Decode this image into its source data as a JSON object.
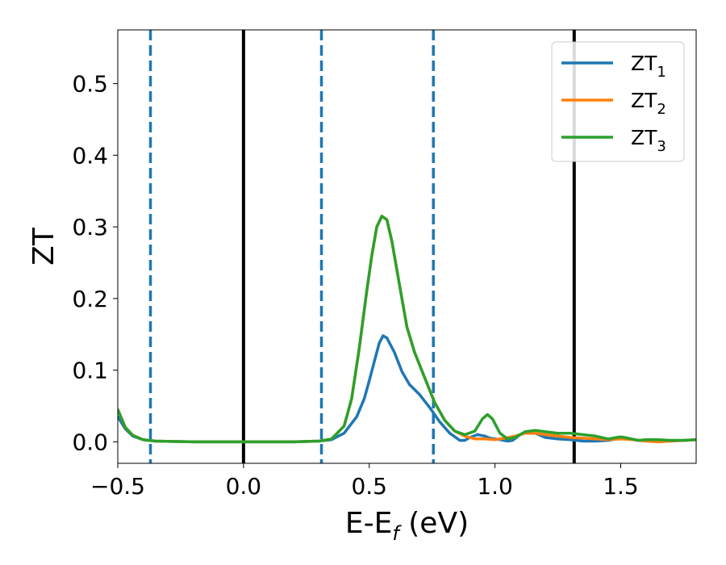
{
  "chart_data": {
    "type": "line",
    "xlabel": "E-E",
    "xlabel_sub": "f",
    "xlabel_unit": " (eV)",
    "ylabel": "ZT",
    "xlim": [
      -0.5,
      1.8
    ],
    "ylim": [
      -0.03,
      0.575
    ],
    "x_ticks": [
      -0.5,
      0.0,
      0.5,
      1.0,
      1.5
    ],
    "x_tick_labels": [
      "−0.5",
      "0.0",
      "0.5",
      "1.0",
      "1.5"
    ],
    "y_ticks": [
      0.0,
      0.1,
      0.2,
      0.3,
      0.4,
      0.5
    ],
    "y_tick_labels": [
      "0.0",
      "0.1",
      "0.2",
      "0.3",
      "0.4",
      "0.5"
    ],
    "grid": false,
    "legend_position": "top-right",
    "vertical_lines": [
      {
        "x": -0.37,
        "style": "dashed",
        "color": "#1f77b4"
      },
      {
        "x": 0.0,
        "style": "solid",
        "color": "#000000"
      },
      {
        "x": 0.31,
        "style": "dashed",
        "color": "#1f77b4"
      },
      {
        "x": 0.755,
        "style": "dashed",
        "color": "#1f77b4"
      },
      {
        "x": 1.315,
        "style": "solid",
        "color": "#000000"
      }
    ],
    "series": [
      {
        "name": "ZT",
        "name_sub": "1",
        "color": "#1f77b4",
        "points": [
          [
            -0.5,
            0.035
          ],
          [
            -0.47,
            0.018
          ],
          [
            -0.44,
            0.008
          ],
          [
            -0.4,
            0.003
          ],
          [
            -0.35,
            0.001
          ],
          [
            -0.2,
            0.0
          ],
          [
            0.0,
            0.0
          ],
          [
            0.2,
            0.0
          ],
          [
            0.3,
            0.001
          ],
          [
            0.35,
            0.003
          ],
          [
            0.4,
            0.012
          ],
          [
            0.45,
            0.035
          ],
          [
            0.48,
            0.06
          ],
          [
            0.5,
            0.085
          ],
          [
            0.52,
            0.112
          ],
          [
            0.54,
            0.138
          ],
          [
            0.555,
            0.148
          ],
          [
            0.57,
            0.145
          ],
          [
            0.6,
            0.125
          ],
          [
            0.63,
            0.098
          ],
          [
            0.66,
            0.08
          ],
          [
            0.7,
            0.066
          ],
          [
            0.74,
            0.048
          ],
          [
            0.78,
            0.028
          ],
          [
            0.82,
            0.012
          ],
          [
            0.86,
            0.002
          ],
          [
            0.88,
            0.002
          ],
          [
            0.9,
            0.006
          ],
          [
            0.93,
            0.01
          ],
          [
            0.96,
            0.008
          ],
          [
            0.98,
            0.005
          ],
          [
            1.02,
            0.003
          ],
          [
            1.05,
            0.001
          ],
          [
            1.07,
            0.002
          ],
          [
            1.1,
            0.01
          ],
          [
            1.13,
            0.014
          ],
          [
            1.16,
            0.012
          ],
          [
            1.2,
            0.006
          ],
          [
            1.25,
            0.004
          ],
          [
            1.3,
            0.003
          ],
          [
            1.35,
            0.001
          ],
          [
            1.4,
            0.001
          ],
          [
            1.45,
            0.002
          ],
          [
            1.5,
            0.005
          ],
          [
            1.53,
            0.004
          ],
          [
            1.57,
            0.002
          ],
          [
            1.6,
            0.002
          ],
          [
            1.65,
            0.002
          ],
          [
            1.7,
            0.002
          ],
          [
            1.75,
            0.002
          ],
          [
            1.8,
            0.003
          ]
        ]
      },
      {
        "name": "ZT",
        "name_sub": "2",
        "color": "#ff7f0e",
        "points": [
          [
            -0.5,
            0.045
          ],
          [
            -0.47,
            0.02
          ],
          [
            -0.44,
            0.009
          ],
          [
            -0.4,
            0.003
          ],
          [
            -0.35,
            0.001
          ],
          [
            -0.2,
            0.0
          ],
          [
            0.0,
            0.0
          ],
          [
            0.2,
            0.0
          ],
          [
            0.3,
            0.001
          ],
          [
            0.35,
            0.004
          ],
          [
            0.4,
            0.022
          ],
          [
            0.43,
            0.06
          ],
          [
            0.46,
            0.13
          ],
          [
            0.49,
            0.21
          ],
          [
            0.51,
            0.26
          ],
          [
            0.53,
            0.3
          ],
          [
            0.55,
            0.315
          ],
          [
            0.57,
            0.31
          ],
          [
            0.59,
            0.28
          ],
          [
            0.62,
            0.22
          ],
          [
            0.65,
            0.16
          ],
          [
            0.68,
            0.125
          ],
          [
            0.72,
            0.09
          ],
          [
            0.76,
            0.055
          ],
          [
            0.8,
            0.03
          ],
          [
            0.84,
            0.015
          ],
          [
            0.88,
            0.008
          ],
          [
            0.92,
            0.004
          ],
          [
            0.96,
            0.004
          ],
          [
            1.0,
            0.003
          ],
          [
            1.04,
            0.005
          ],
          [
            1.08,
            0.008
          ],
          [
            1.12,
            0.012
          ],
          [
            1.16,
            0.012
          ],
          [
            1.2,
            0.01
          ],
          [
            1.25,
            0.008
          ],
          [
            1.3,
            0.006
          ],
          [
            1.35,
            0.005
          ],
          [
            1.4,
            0.004
          ],
          [
            1.45,
            0.003
          ],
          [
            1.5,
            0.004
          ],
          [
            1.55,
            0.003
          ],
          [
            1.6,
            0.001
          ],
          [
            1.65,
            0.0
          ],
          [
            1.7,
            0.001
          ],
          [
            1.75,
            0.002
          ],
          [
            1.8,
            0.003
          ]
        ]
      },
      {
        "name": "ZT",
        "name_sub": "3",
        "color": "#2ca02c",
        "points": [
          [
            -0.5,
            0.045
          ],
          [
            -0.47,
            0.02
          ],
          [
            -0.44,
            0.009
          ],
          [
            -0.4,
            0.003
          ],
          [
            -0.35,
            0.001
          ],
          [
            -0.2,
            0.0
          ],
          [
            0.0,
            0.0
          ],
          [
            0.2,
            0.0
          ],
          [
            0.3,
            0.001
          ],
          [
            0.35,
            0.004
          ],
          [
            0.4,
            0.022
          ],
          [
            0.43,
            0.06
          ],
          [
            0.46,
            0.13
          ],
          [
            0.49,
            0.21
          ],
          [
            0.51,
            0.26
          ],
          [
            0.53,
            0.3
          ],
          [
            0.55,
            0.315
          ],
          [
            0.57,
            0.31
          ],
          [
            0.59,
            0.28
          ],
          [
            0.62,
            0.22
          ],
          [
            0.65,
            0.16
          ],
          [
            0.68,
            0.125
          ],
          [
            0.72,
            0.09
          ],
          [
            0.76,
            0.055
          ],
          [
            0.8,
            0.03
          ],
          [
            0.84,
            0.015
          ],
          [
            0.88,
            0.01
          ],
          [
            0.92,
            0.015
          ],
          [
            0.95,
            0.032
          ],
          [
            0.97,
            0.038
          ],
          [
            0.99,
            0.032
          ],
          [
            1.02,
            0.012
          ],
          [
            1.05,
            0.004
          ],
          [
            1.08,
            0.006
          ],
          [
            1.12,
            0.014
          ],
          [
            1.16,
            0.016
          ],
          [
            1.2,
            0.014
          ],
          [
            1.25,
            0.012
          ],
          [
            1.3,
            0.012
          ],
          [
            1.35,
            0.01
          ],
          [
            1.4,
            0.008
          ],
          [
            1.45,
            0.004
          ],
          [
            1.5,
            0.007
          ],
          [
            1.53,
            0.005
          ],
          [
            1.57,
            0.002
          ],
          [
            1.6,
            0.003
          ],
          [
            1.65,
            0.003
          ],
          [
            1.7,
            0.002
          ],
          [
            1.75,
            0.002
          ],
          [
            1.8,
            0.003
          ]
        ]
      }
    ]
  }
}
